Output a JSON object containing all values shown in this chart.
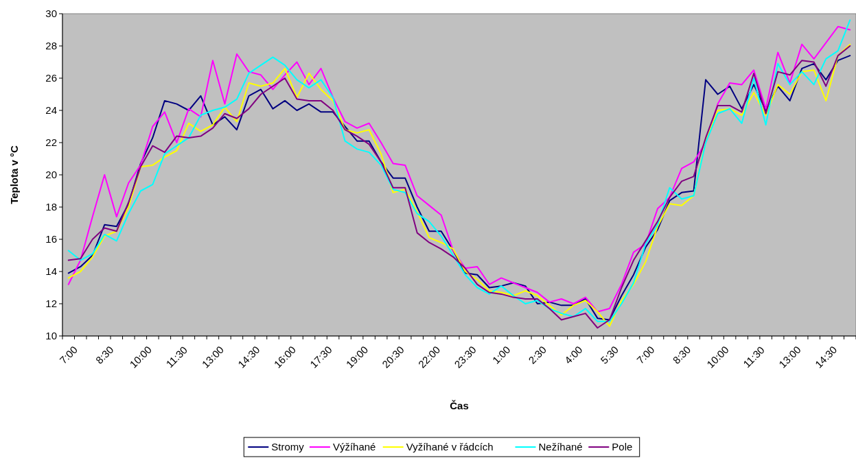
{
  "chart_data": {
    "type": "line",
    "xlabel": "Čas",
    "ylabel": "Teplota v °C",
    "categories": [
      "7:00",
      null,
      null,
      "8:30",
      null,
      null,
      "10:00",
      null,
      null,
      "11:30",
      null,
      null,
      "13:00",
      null,
      null,
      "14:30",
      null,
      null,
      "16:00",
      null,
      null,
      "17:30",
      null,
      null,
      "19:00",
      null,
      null,
      "20:30",
      null,
      null,
      "22:00",
      null,
      null,
      "23:30",
      null,
      null,
      "1:00",
      null,
      null,
      "2:30",
      null,
      null,
      "4:00",
      null,
      null,
      "5:30",
      null,
      null,
      "7:00",
      null,
      null,
      "8:30",
      null,
      null,
      "10:00",
      null,
      null,
      "11:30",
      null,
      null,
      "13:00",
      null,
      null,
      "14:30",
      null,
      null
    ],
    "ylim": [
      10,
      30
    ],
    "yticks": [
      10,
      12,
      14,
      16,
      18,
      20,
      22,
      24,
      26,
      28,
      30
    ],
    "grid": false,
    "legend": "bottom",
    "series": [
      {
        "name": "Stromy",
        "color": "#000080",
        "values": [
          13.9,
          14.3,
          15.0,
          16.9,
          16.8,
          18.2,
          20.7,
          22.3,
          24.6,
          24.4,
          24.0,
          24.9,
          23.1,
          23.6,
          22.8,
          24.9,
          25.3,
          24.1,
          24.6,
          24.0,
          24.4,
          23.9,
          23.9,
          23.0,
          22.1,
          22.1,
          20.8,
          19.8,
          19.8,
          18.0,
          16.5,
          16.5,
          15.3,
          13.9,
          13.8,
          13.0,
          13.1,
          13.3,
          13.1,
          12.0,
          12.1,
          11.9,
          11.9,
          12.3,
          11.1,
          11.0,
          12.5,
          13.8,
          15.5,
          16.6,
          18.4,
          18.9,
          19.0,
          25.9,
          25.0,
          25.5,
          24.1,
          25.6,
          24.0,
          25.5,
          24.6,
          26.6,
          26.9,
          25.9,
          27.1,
          27.4
        ]
      },
      {
        "name": "Výžíhané",
        "color": "#ff00ff",
        "values": [
          13.2,
          14.7,
          17.4,
          20.0,
          17.4,
          19.5,
          20.6,
          23.0,
          23.9,
          22.0,
          24.1,
          23.6,
          27.1,
          24.4,
          27.5,
          26.4,
          26.2,
          25.3,
          26.2,
          27.0,
          25.6,
          26.6,
          24.8,
          23.3,
          22.9,
          23.2,
          22.0,
          20.7,
          20.6,
          18.7,
          18.1,
          17.5,
          15.3,
          14.2,
          14.3,
          13.2,
          13.6,
          13.3,
          13.0,
          12.7,
          12.1,
          12.3,
          12.0,
          12.4,
          11.5,
          11.7,
          13.2,
          15.2,
          15.7,
          17.9,
          18.6,
          20.4,
          20.8,
          22.0,
          24.4,
          25.7,
          25.6,
          26.5,
          24.1,
          27.6,
          25.7,
          28.1,
          27.2,
          28.2,
          29.2,
          29.0
        ]
      },
      {
        "name": "Vyžíhané v řádcích",
        "color": "#ffff00",
        "values": [
          13.6,
          14.0,
          14.9,
          16.2,
          16.5,
          18.0,
          20.5,
          20.6,
          21.1,
          21.5,
          23.2,
          22.7,
          23.1,
          24.2,
          23.3,
          25.7,
          25.5,
          25.7,
          26.6,
          24.8,
          26.3,
          25.3,
          24.6,
          22.8,
          22.6,
          22.8,
          21.3,
          18.9,
          19.1,
          17.7,
          16.1,
          15.8,
          15.4,
          14.0,
          13.5,
          12.8,
          12.7,
          12.5,
          12.8,
          12.5,
          11.9,
          11.3,
          11.9,
          12.2,
          11.5,
          10.6,
          12.2,
          13.2,
          14.6,
          16.8,
          18.2,
          18.1,
          18.7,
          22.1,
          24.0,
          24.1,
          23.7,
          25.1,
          23.7,
          25.6,
          25.0,
          26.4,
          26.5,
          24.6,
          27.4,
          28.1
        ]
      },
      {
        "name": "Nežíhané",
        "color": "#00ffff",
        "values": [
          15.3,
          14.7,
          15.1,
          16.3,
          15.9,
          17.6,
          19.0,
          19.4,
          21.3,
          21.8,
          22.3,
          23.7,
          24.0,
          24.2,
          24.7,
          26.3,
          26.8,
          27.3,
          26.8,
          25.9,
          25.4,
          25.9,
          24.8,
          22.1,
          21.6,
          21.4,
          20.6,
          19.1,
          18.9,
          17.6,
          17.1,
          16.2,
          15.0,
          13.8,
          13.0,
          12.6,
          13.1,
          12.5,
          12.0,
          12.2,
          11.7,
          11.4,
          11.2,
          11.7,
          10.9,
          10.9,
          12.0,
          13.3,
          15.7,
          16.9,
          19.2,
          18.5,
          18.7,
          22.0,
          23.8,
          24.1,
          23.2,
          26.0,
          23.1,
          26.9,
          25.6,
          26.4,
          25.6,
          27.2,
          27.7,
          29.6
        ]
      },
      {
        "name": "Pole",
        "color": "#800080",
        "values": [
          14.7,
          14.8,
          16.0,
          16.7,
          16.5,
          18.3,
          20.5,
          21.8,
          21.4,
          22.4,
          22.3,
          22.4,
          22.9,
          23.8,
          23.5,
          24.1,
          25.0,
          25.5,
          26.0,
          24.7,
          24.6,
          24.6,
          24.0,
          22.8,
          22.4,
          21.9,
          20.8,
          19.2,
          19.2,
          16.4,
          15.8,
          15.4,
          14.9,
          14.2,
          13.2,
          12.7,
          12.6,
          12.4,
          12.3,
          12.3,
          11.7,
          11.0,
          11.2,
          11.4,
          10.5,
          11.0,
          13.0,
          14.7,
          15.9,
          17.1,
          18.6,
          19.6,
          19.9,
          22.3,
          24.3,
          24.3,
          23.9,
          26.3,
          23.8,
          26.4,
          26.2,
          27.1,
          27.0,
          25.5,
          27.4,
          28.0
        ]
      }
    ]
  }
}
